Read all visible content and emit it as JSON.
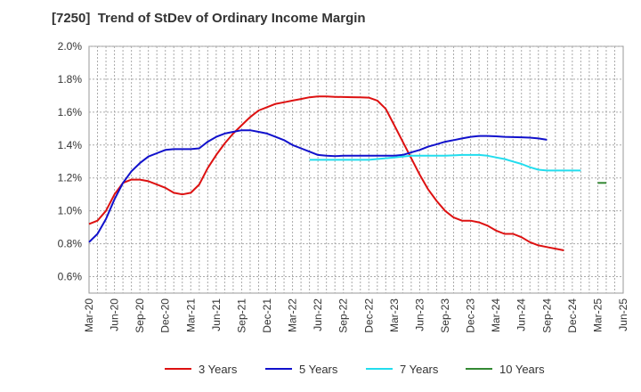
{
  "chart_data": {
    "type": "line",
    "title": "[7250]  Trend of StDev of Ordinary Income Margin",
    "xlabel": "",
    "ylabel": "",
    "ylim": [
      0.5,
      2.0
    ],
    "y_ticks": [
      "0.6%",
      "0.8%",
      "1.0%",
      "1.2%",
      "1.4%",
      "1.6%",
      "1.8%",
      "2.0%"
    ],
    "y_tick_values": [
      0.6,
      0.8,
      1.0,
      1.2,
      1.4,
      1.6,
      1.8,
      2.0
    ],
    "x_ticks": [
      "Mar-20",
      "Jun-20",
      "Sep-20",
      "Dec-20",
      "Mar-21",
      "Jun-21",
      "Sep-21",
      "Dec-21",
      "Mar-22",
      "Jun-22",
      "Sep-22",
      "Dec-22",
      "Mar-23",
      "Jun-23",
      "Sep-23",
      "Dec-23",
      "Mar-24",
      "Jun-24",
      "Sep-24",
      "Dec-24",
      "Mar-25",
      "Jun-25"
    ],
    "grid": true,
    "legend_position": "bottom",
    "series": [
      {
        "name": "3 Years",
        "color": "#dd1111",
        "values": [
          0.92,
          0.94,
          1.0,
          1.1,
          1.17,
          1.19,
          1.19,
          1.18,
          1.16,
          1.14,
          1.11,
          1.1,
          1.11,
          1.16,
          1.26,
          1.34,
          1.41,
          1.47,
          1.52,
          1.57,
          1.61,
          1.63,
          1.65,
          1.66,
          1.67,
          1.68,
          1.69,
          1.695,
          1.695,
          1.693,
          1.692,
          1.691,
          1.69,
          1.688,
          1.67,
          1.62,
          1.52,
          1.42,
          1.32,
          1.22,
          1.13,
          1.06,
          1.0,
          0.96,
          0.94,
          0.94,
          0.93,
          0.91,
          0.88,
          0.86,
          0.86,
          0.84,
          0.81,
          0.79,
          0.78,
          0.77,
          0.76
        ]
      },
      {
        "name": "5 Years",
        "color": "#1111cc",
        "values": [
          0.81,
          0.86,
          0.95,
          1.07,
          1.17,
          1.24,
          1.29,
          1.33,
          1.35,
          1.37,
          1.375,
          1.375,
          1.375,
          1.38,
          1.42,
          1.45,
          1.47,
          1.48,
          1.49,
          1.49,
          1.48,
          1.47,
          1.45,
          1.43,
          1.4,
          1.38,
          1.36,
          1.34,
          1.335,
          1.333,
          1.335,
          1.335,
          1.335,
          1.335,
          1.335,
          1.335,
          1.335,
          1.34,
          1.355,
          1.37,
          1.39,
          1.405,
          1.42,
          1.43,
          1.44,
          1.45,
          1.455,
          1.455,
          1.453,
          1.45,
          1.448,
          1.447,
          1.445,
          1.44,
          1.432
        ]
      },
      {
        "name": "7 Years",
        "color": "#22ddee",
        "values": [
          1.31,
          1.31,
          1.31,
          1.31,
          1.31,
          1.31,
          1.31,
          1.31,
          1.315,
          1.32,
          1.325,
          1.33,
          1.335,
          1.335,
          1.335,
          1.335,
          1.335,
          1.337,
          1.34,
          1.34,
          1.34,
          1.335,
          1.325,
          1.315,
          1.3,
          1.285,
          1.265,
          1.25,
          1.245,
          1.245,
          1.245,
          1.245,
          1.245
        ]
      },
      {
        "name": "10 Years",
        "color": "#338833",
        "values": [
          1.17,
          1.17
        ]
      }
    ]
  }
}
